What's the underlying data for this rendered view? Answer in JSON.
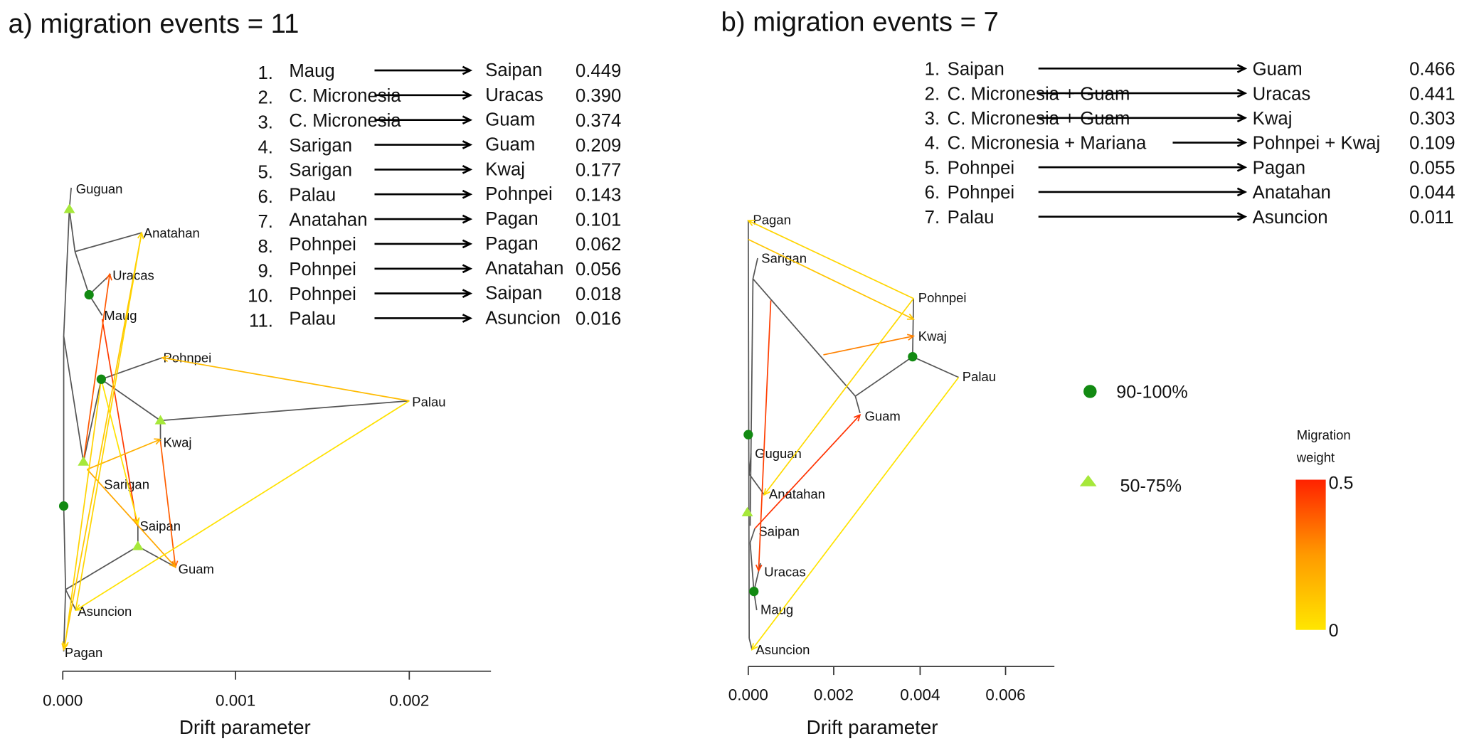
{
  "chart_data": [
    {
      "type": "tree",
      "panel": "a",
      "title": "a) migration events = 11",
      "xlabel": "Drift parameter",
      "xticks": [
        "0.000",
        "0.001",
        "0.002"
      ],
      "leaves": [
        "Guguan",
        "Anatahan",
        "Uracas",
        "Maug",
        "Pohnpei",
        "Palau",
        "Kwaj",
        "Sarigan",
        "Saipan",
        "Guam",
        "Asuncion",
        "Pagan"
      ],
      "migrations": [
        {
          "n": "1.",
          "from": "Maug",
          "to": "Saipan",
          "weight": 0.449,
          "label": "0.449"
        },
        {
          "n": "2.",
          "from": "C. Micronesia",
          "to": "Uracas",
          "weight": 0.39,
          "label": "0.390"
        },
        {
          "n": "3.",
          "from": "C. Micronesia",
          "to": "Guam",
          "weight": 0.374,
          "label": "0.374"
        },
        {
          "n": "4.",
          "from": "Sarigan",
          "to": "Guam",
          "weight": 0.209,
          "label": "0.209"
        },
        {
          "n": "5.",
          "from": "Sarigan",
          "to": "Kwaj",
          "weight": 0.177,
          "label": "0.177"
        },
        {
          "n": "6.",
          "from": "Palau",
          "to": "Pohnpei",
          "weight": 0.143,
          "label": "0.143"
        },
        {
          "n": "7.",
          "from": "Anatahan",
          "to": "Pagan",
          "weight": 0.101,
          "label": "0.101"
        },
        {
          "n": "8.",
          "from": "Pohnpei",
          "to": "Pagan",
          "weight": 0.062,
          "label": "0.062"
        },
        {
          "n": "9.",
          "from": "Pohnpei",
          "to": "Anatahan",
          "weight": 0.056,
          "label": "0.056"
        },
        {
          "n": "10.",
          "from": "Pohnpei",
          "to": "Saipan",
          "weight": 0.018,
          "label": "0.018"
        },
        {
          "n": "11.",
          "from": "Palau",
          "to": "Asuncion",
          "weight": 0.016,
          "label": "0.016"
        }
      ]
    },
    {
      "type": "tree",
      "panel": "b",
      "title": "b) migration events = 7",
      "xlabel": "Drift parameter",
      "xticks": [
        "0.000",
        "0.002",
        "0.004",
        "0.006"
      ],
      "leaves": [
        "Pagan",
        "Sarigan",
        "Pohnpei",
        "Kwaj",
        "Palau",
        "Guam",
        "Guguan",
        "Anatahan",
        "Saipan",
        "Uracas",
        "Maug",
        "Asuncion"
      ],
      "migrations": [
        {
          "n": "1.",
          "from": "Saipan",
          "to": "Guam",
          "weight": 0.466,
          "label": "0.466"
        },
        {
          "n": "2.",
          "from": "C. Micronesia + Guam",
          "to": "Uracas",
          "weight": 0.441,
          "label": "0.441"
        },
        {
          "n": "3.",
          "from": "C. Micronesia + Guam",
          "to": "Kwaj",
          "weight": 0.303,
          "label": "0.303"
        },
        {
          "n": "4.",
          "from": "C. Micronesia + Mariana",
          "to": "Pohnpei + Kwaj",
          "weight": 0.109,
          "label": "0.109"
        },
        {
          "n": "5.",
          "from": "Pohnpei",
          "to": "Pagan",
          "weight": 0.055,
          "label": "0.055"
        },
        {
          "n": "6.",
          "from": "Pohnpei",
          "to": "Anatahan",
          "weight": 0.044,
          "label": "0.044"
        },
        {
          "n": "7.",
          "from": "Palau",
          "to": "Asuncion",
          "weight": 0.011,
          "label": "0.011"
        }
      ]
    }
  ],
  "legend": {
    "support_high": "90-100%",
    "support_mid": "50-75%",
    "weight_title_1": "Migration",
    "weight_title_2": "weight",
    "weight_max": "0.5",
    "weight_min": "0"
  },
  "colors": {
    "tree": "#555555",
    "support_high": "#128a12",
    "support_mid": "#a6e83a",
    "weight_low": "#ffe600",
    "weight_mid": "#ff9a00",
    "weight_high": "#ff2200"
  }
}
